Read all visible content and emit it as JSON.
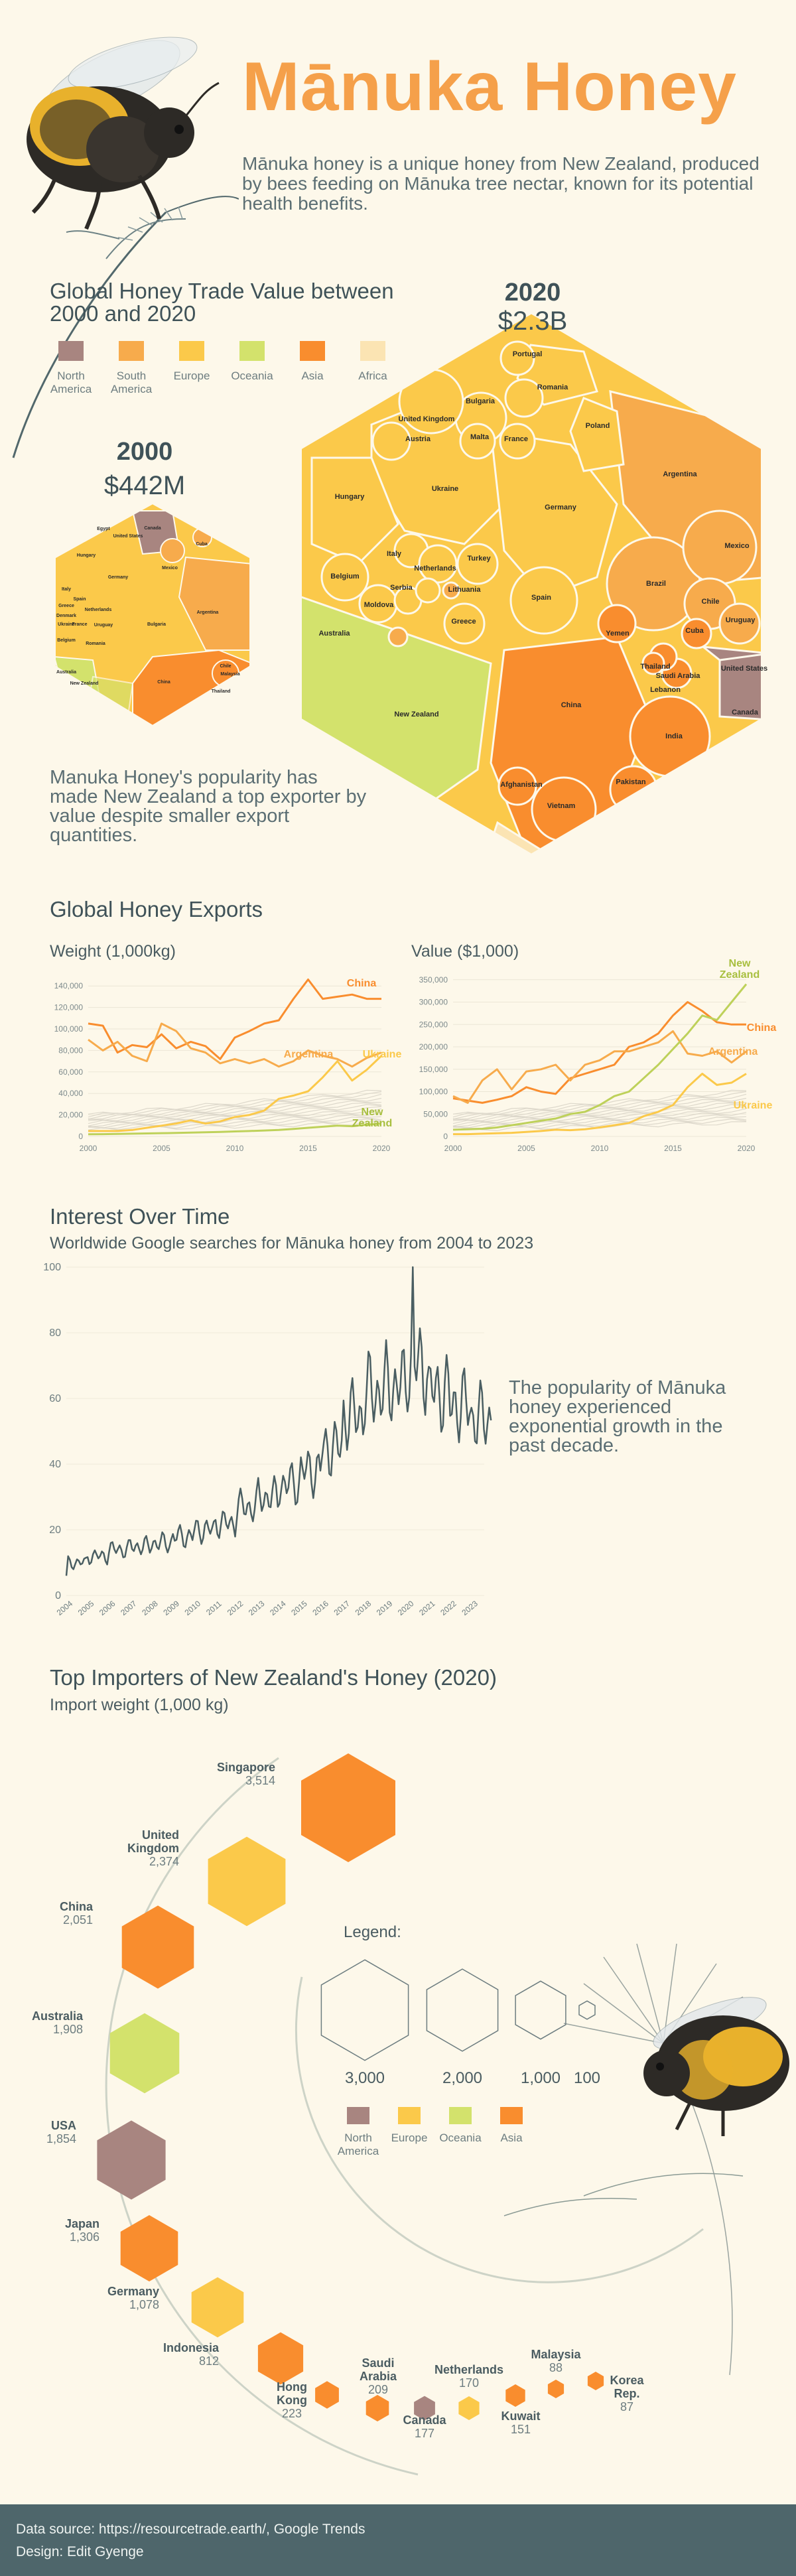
{
  "header": {
    "title": "Mānuka Honey",
    "intro": "Mānuka honey is a unique honey from New Zealand, produced by bees feeding on Mānuka tree nectar, known for its potential health benefits."
  },
  "colors": {
    "north_america": "#a88580",
    "south_america": "#f7ab4c",
    "europe": "#fbc94a",
    "oceania": "#d3e26c",
    "asia": "#f98d2e",
    "africa": "#fbe4b3",
    "line": "#4a5e62",
    "background": "#fdf8ea"
  },
  "trade": {
    "title_line1": "Global Honey Trade Value between",
    "title_line2": "2000 and 2020",
    "legend": [
      {
        "line1": "North",
        "line2": "America",
        "color": "#a88580"
      },
      {
        "line1": "South",
        "line2": "America",
        "color": "#f7ab4c"
      },
      {
        "line1": "Europe",
        "line2": "",
        "color": "#fbc94a"
      },
      {
        "line1": "Oceania",
        "line2": "",
        "color": "#d3e26c"
      },
      {
        "line1": "Asia",
        "line2": "",
        "color": "#f98d2e"
      },
      {
        "line1": "Africa",
        "line2": "",
        "color": "#fbe4b3"
      }
    ],
    "year_2000": "2000",
    "value_2000": "$442M",
    "year_2020": "2020",
    "value_2020": "$2.3B",
    "labels_2000": [
      "Egypt",
      "Canada",
      "United States",
      "Cuba",
      "Hungary",
      "Germany",
      "Mexico",
      "Italy",
      "Spain",
      "Greece",
      "Argentina",
      "Denmark",
      "Ukraine",
      "Netherlands",
      "France",
      "Uruguay",
      "Bulgaria",
      "Belgium",
      "Romania",
      "Australia",
      "New Zealand",
      "China",
      "Chile",
      "Malaysia",
      "Thailand"
    ],
    "labels_2020": [
      "Portugal",
      "Romania",
      "Bulgaria",
      "United Kingdom",
      "Poland",
      "Austria",
      "Malta",
      "France",
      "Argentina",
      "Hungary",
      "Ukraine",
      "Germany",
      "Mexico",
      "Italy",
      "Netherlands",
      "Turkey",
      "Belgium",
      "Serbia",
      "Lithuania",
      "Brazil",
      "Moldova",
      "Spain",
      "Chile",
      "Greece",
      "Yemen",
      "Uruguay",
      "Cuba",
      "Australia",
      "Thailand",
      "United States",
      "Saudi Arabia",
      "Lebanon",
      "New Zealand",
      "China",
      "Canada",
      "India",
      "Pakistan",
      "Afghanistan",
      "Vietnam"
    ],
    "note": "Manuka Honey's popularity has made New Zealand a top exporter by value despite smaller export quantities."
  },
  "exports": {
    "title": "Global Honey Exports",
    "weight_title": "Weight (1,000kg)",
    "value_title": "Value ($1,000)"
  },
  "interest": {
    "title": "Interest Over Time",
    "subtitle": "Worldwide Google searches for Mānuka honey from 2004 to 2023",
    "note": "The popularity of Mānuka honey experienced exponential growth in the past decade."
  },
  "importers": {
    "title": "Top Importers of New Zealand's Honey (2020)",
    "subtitle": "Import weight (1,000 kg)",
    "legend_title": "Legend:",
    "legend_sizes": [
      "3,000",
      "2,000",
      "1,000",
      "100"
    ],
    "legend_regions": [
      {
        "line1": "North",
        "line2": "America",
        "color": "#a88580"
      },
      {
        "line1": "Europe",
        "line2": "",
        "color": "#fbc94a"
      },
      {
        "line1": "Oceania",
        "line2": "",
        "color": "#d3e26c"
      },
      {
        "line1": "Asia",
        "line2": "",
        "color": "#f98d2e"
      }
    ]
  },
  "chart_data": [
    {
      "type": "line",
      "title": "Weight (1,000kg)",
      "x": [
        2000,
        2001,
        2002,
        2003,
        2004,
        2005,
        2006,
        2007,
        2008,
        2009,
        2010,
        2011,
        2012,
        2013,
        2014,
        2015,
        2016,
        2017,
        2018,
        2019,
        2020
      ],
      "ylim": [
        0,
        150000
      ],
      "yticks": [
        0,
        20000,
        40000,
        60000,
        80000,
        100000,
        120000,
        140000
      ],
      "ytick_labels": [
        "0",
        "20,000",
        "40,000",
        "60,000",
        "80,000",
        "100,000",
        "120,000",
        "140,000"
      ],
      "xticks": [
        2000,
        2005,
        2010,
        2015,
        2020
      ],
      "series": [
        {
          "name": "China",
          "color": "#f98d2e",
          "values": [
            105000,
            103000,
            78000,
            85000,
            83000,
            95000,
            82000,
            88000,
            84000,
            72000,
            92000,
            98000,
            105000,
            108000,
            128000,
            146000,
            128000,
            130000,
            132000,
            128000,
            128000
          ]
        },
        {
          "name": "Argentina",
          "color": "#f7ab4c",
          "values": [
            90000,
            80000,
            88000,
            75000,
            70000,
            105000,
            98000,
            82000,
            78000,
            68000,
            72000,
            68000,
            72000,
            65000,
            70000,
            80000,
            75000,
            72000,
            65000,
            73000,
            78000
          ]
        },
        {
          "name": "Ukraine",
          "color": "#fbc94a",
          "values": [
            5000,
            5000,
            5000,
            6000,
            8000,
            10000,
            12000,
            15000,
            12000,
            14000,
            18000,
            20000,
            24000,
            35000,
            38000,
            42000,
            55000,
            70000,
            52000,
            62000,
            75000
          ]
        },
        {
          "name": "New Zealand",
          "color": "#bed15a",
          "values": [
            2000,
            2100,
            2300,
            2500,
            2800,
            3000,
            3200,
            3500,
            3800,
            4200,
            4600,
            5000,
            5500,
            6000,
            7000,
            8000,
            9000,
            10000,
            9500,
            11000,
            12000
          ]
        }
      ],
      "annotations": [
        "China",
        "Argentina",
        "Ukraine",
        "New Zealand"
      ]
    },
    {
      "type": "line",
      "title": "Value ($1,000)",
      "x": [
        2000,
        2001,
        2002,
        2003,
        2004,
        2005,
        2006,
        2007,
        2008,
        2009,
        2010,
        2011,
        2012,
        2013,
        2014,
        2015,
        2016,
        2017,
        2018,
        2019,
        2020
      ],
      "ylim": [
        0,
        360000
      ],
      "yticks": [
        0,
        50000,
        100000,
        150000,
        200000,
        250000,
        300000,
        350000
      ],
      "ytick_labels": [
        "0",
        "50,000",
        "100,000",
        "150,000",
        "200,000",
        "250,000",
        "300,000",
        "350,000"
      ],
      "xticks": [
        2000,
        2005,
        2010,
        2015,
        2020
      ],
      "series": [
        {
          "name": "China",
          "color": "#f98d2e",
          "values": [
            85000,
            80000,
            75000,
            82000,
            90000,
            110000,
            100000,
            95000,
            130000,
            140000,
            150000,
            160000,
            200000,
            210000,
            230000,
            270000,
            300000,
            280000,
            255000,
            250000,
            250000
          ]
        },
        {
          "name": "Argentina",
          "color": "#f7ab4c",
          "values": [
            90000,
            75000,
            125000,
            150000,
            105000,
            145000,
            150000,
            160000,
            125000,
            160000,
            170000,
            190000,
            190000,
            200000,
            210000,
            235000,
            185000,
            180000,
            190000,
            165000,
            190000
          ]
        },
        {
          "name": "New Zealand",
          "color": "#bed15a",
          "values": [
            15000,
            16000,
            17000,
            20000,
            25000,
            30000,
            35000,
            40000,
            50000,
            55000,
            70000,
            90000,
            100000,
            130000,
            160000,
            195000,
            230000,
            270000,
            260000,
            300000,
            340000
          ]
        },
        {
          "name": "Ukraine",
          "color": "#fbc94a",
          "values": [
            5000,
            5000,
            6000,
            7000,
            8000,
            10000,
            12000,
            15000,
            14000,
            16000,
            20000,
            25000,
            30000,
            45000,
            55000,
            70000,
            110000,
            140000,
            115000,
            120000,
            140000
          ]
        }
      ],
      "annotations": [
        "New Zealand",
        "China",
        "Argentina",
        "Ukraine"
      ]
    },
    {
      "type": "line",
      "title": "Worldwide Google searches for Mānuka honey from 2004 to 2023",
      "x_start": 2004,
      "ylim": [
        0,
        100
      ],
      "yticks": [
        0,
        20,
        40,
        60,
        80,
        100
      ],
      "xticks": [
        2004,
        2005,
        2006,
        2007,
        2008,
        2009,
        2010,
        2011,
        2012,
        2013,
        2014,
        2015,
        2016,
        2017,
        2018,
        2019,
        2020,
        2021,
        2022,
        2023
      ],
      "annual_values": [
        10,
        12,
        14,
        15,
        16,
        18,
        20,
        22,
        27,
        30,
        34,
        38,
        45,
        55,
        62,
        64,
        70,
        62,
        58,
        54
      ],
      "peak": 100
    },
    {
      "type": "scatter",
      "title": "Top Importers of New Zealand's Honey (2020)",
      "unit": "1,000 kg",
      "points": [
        {
          "country": "Singapore",
          "value": 3514,
          "display": "3,514",
          "region": "Asia"
        },
        {
          "country": "United Kingdom",
          "value": 2374,
          "display": "2,374",
          "region": "Europe"
        },
        {
          "country": "China",
          "value": 2051,
          "display": "2,051",
          "region": "Asia"
        },
        {
          "country": "Australia",
          "value": 1908,
          "display": "1,908",
          "region": "Oceania"
        },
        {
          "country": "USA",
          "value": 1854,
          "display": "1,854",
          "region": "North America"
        },
        {
          "country": "Japan",
          "value": 1306,
          "display": "1,306",
          "region": "Asia"
        },
        {
          "country": "Germany",
          "value": 1078,
          "display": "1,078",
          "region": "Europe"
        },
        {
          "country": "Indonesia",
          "value": 812,
          "display": "812",
          "region": "Asia"
        },
        {
          "country": "Hong Kong",
          "value": 223,
          "display": "223",
          "region": "Asia"
        },
        {
          "country": "Saudi Arabia",
          "value": 209,
          "display": "209",
          "region": "Asia"
        },
        {
          "country": "Canada",
          "value": 177,
          "display": "177",
          "region": "North America"
        },
        {
          "country": "Netherlands",
          "value": 170,
          "display": "170",
          "region": "Europe"
        },
        {
          "country": "Kuwait",
          "value": 151,
          "display": "151",
          "region": "Asia"
        },
        {
          "country": "Malaysia",
          "value": 88,
          "display": "88",
          "region": "Asia"
        },
        {
          "country": "Korea Rep.",
          "value": 87,
          "display": "87",
          "region": "Asia"
        }
      ]
    }
  ],
  "footer": {
    "source": "Data source: https://resourcetrade.earth/, Google Trends",
    "design": "Design: Edit Gyenge"
  }
}
